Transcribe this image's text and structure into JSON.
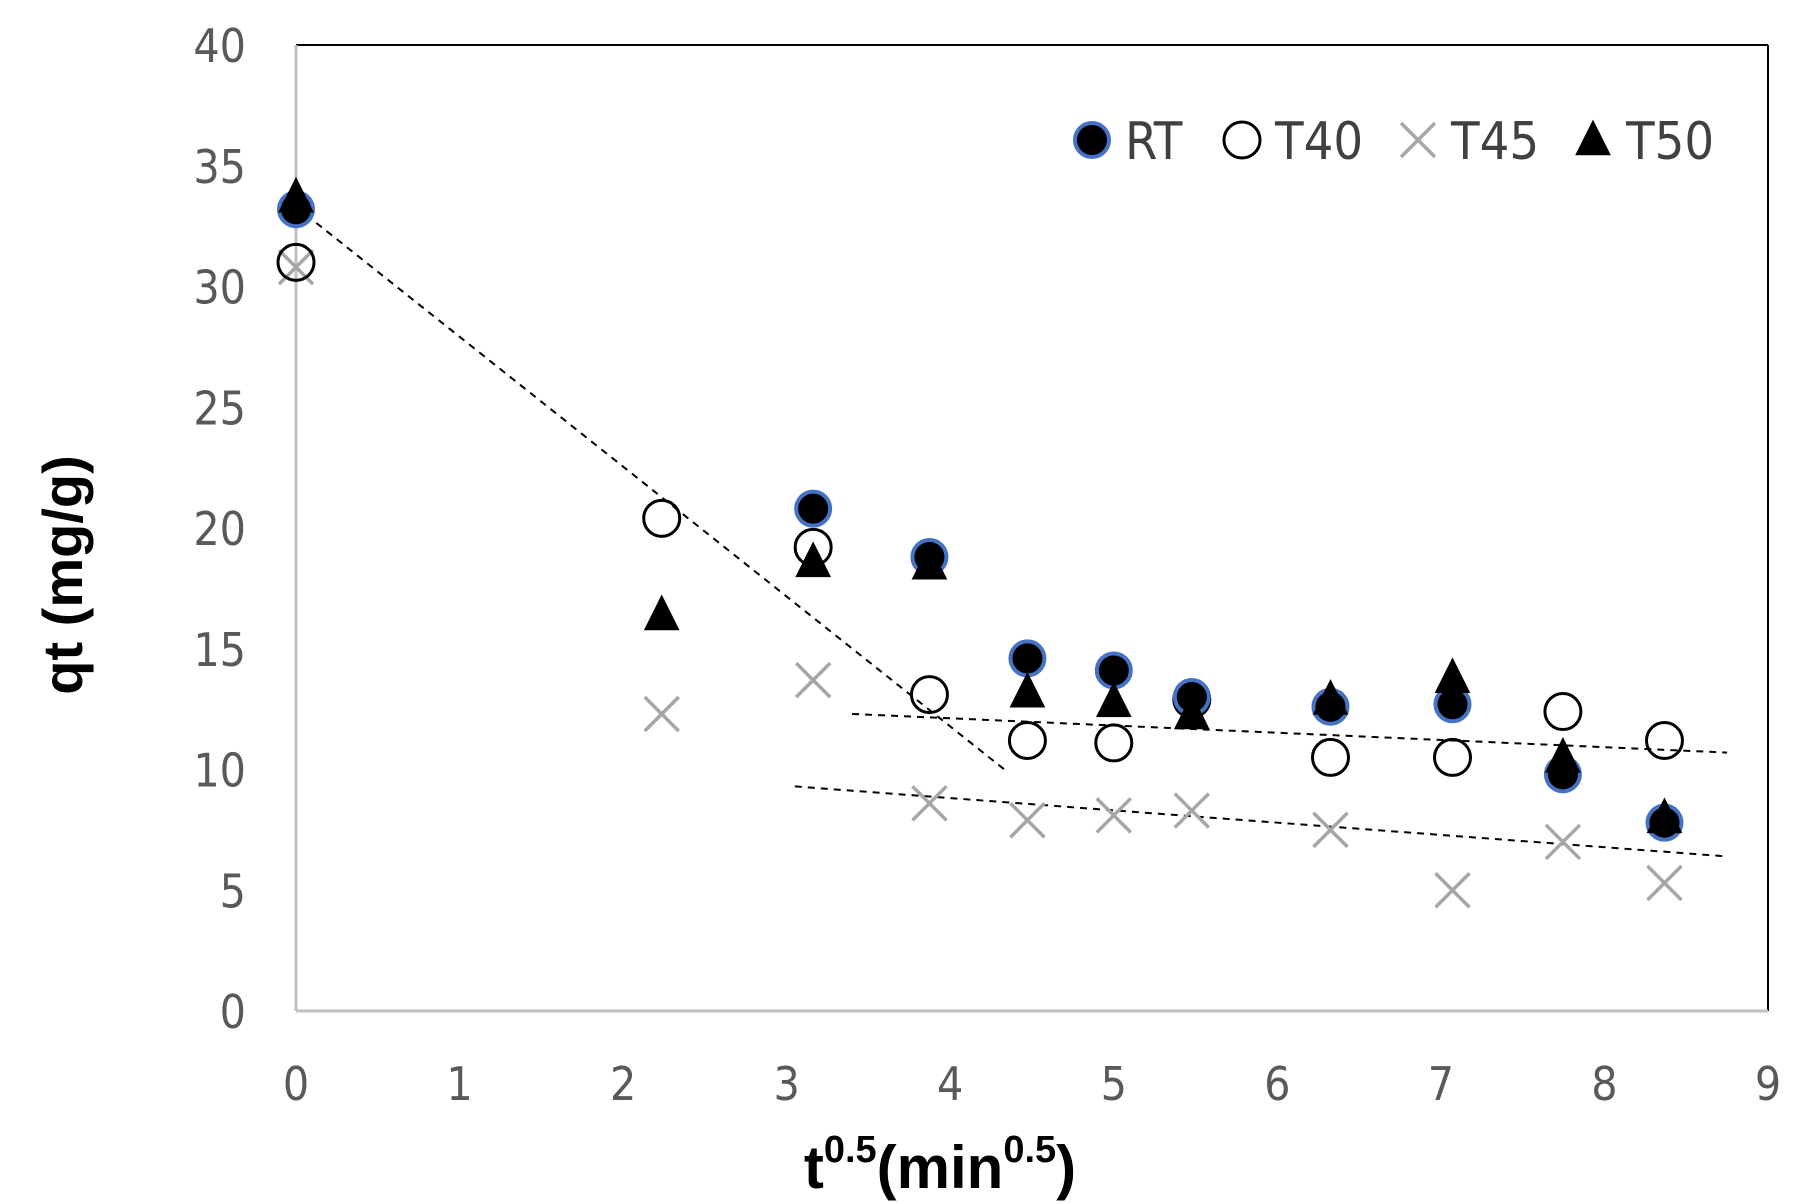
{
  "chart_data": {
    "type": "scatter",
    "title": "",
    "xlabel": {
      "base": "t",
      "sup1": "0.5",
      "paren_open": "(min",
      "sup2": "0.5",
      "paren_close": ")"
    },
    "ylabel": "qt (mg/g)",
    "xlim": [
      0,
      9
    ],
    "ylim": [
      0,
      40
    ],
    "xticks": [
      "0",
      "1",
      "2",
      "3",
      "4",
      "5",
      "6",
      "7",
      "8",
      "9"
    ],
    "yticks": [
      "0",
      "5",
      "10",
      "15",
      "20",
      "25",
      "30",
      "35",
      "40"
    ],
    "grid": false,
    "legend_position": "top-right",
    "x": [
      0,
      2.236,
      3.162,
      3.873,
      4.472,
      5.0,
      5.477,
      6.325,
      7.071,
      7.746,
      8.367
    ],
    "series": [
      {
        "name": "RT",
        "marker": "filled-circle",
        "values": [
          33.2,
          null,
          20.8,
          18.8,
          14.6,
          14.1,
          13.0,
          12.6,
          12.7,
          9.8,
          7.8
        ]
      },
      {
        "name": "T40",
        "marker": "open-circle",
        "values": [
          31.0,
          20.4,
          19.2,
          13.1,
          11.2,
          11.1,
          12.9,
          10.5,
          10.5,
          12.4,
          11.2
        ]
      },
      {
        "name": "T45",
        "marker": "x",
        "values": [
          30.8,
          12.3,
          13.7,
          8.6,
          7.9,
          8.1,
          8.3,
          7.5,
          5.0,
          7.0,
          5.3
        ]
      },
      {
        "name": "T50",
        "marker": "filled-triangle",
        "values": [
          33.7,
          16.4,
          18.6,
          18.5,
          13.2,
          12.8,
          12.3,
          12.9,
          13.8,
          10.5,
          8.0
        ]
      }
    ],
    "trendlines": [
      {
        "name": "initial-stage-fit",
        "style": "dashed",
        "x": [
          0,
          4.35
        ],
        "y": [
          33.3,
          9.9
        ]
      },
      {
        "name": "upper-plateau-fit",
        "style": "dashed",
        "x": [
          3.4,
          8.75
        ],
        "y": [
          12.3,
          10.7
        ]
      },
      {
        "name": "lower-plateau-fit",
        "style": "dashed",
        "x": [
          3.05,
          8.75
        ],
        "y": [
          9.3,
          6.4
        ]
      }
    ],
    "colors": {
      "axis": "#bfbfbf",
      "frame": "#000000",
      "filled": "#000000",
      "rt_outline": "#4472c4",
      "x_marker": "#a6a6a6",
      "trendline": "#000000"
    }
  }
}
